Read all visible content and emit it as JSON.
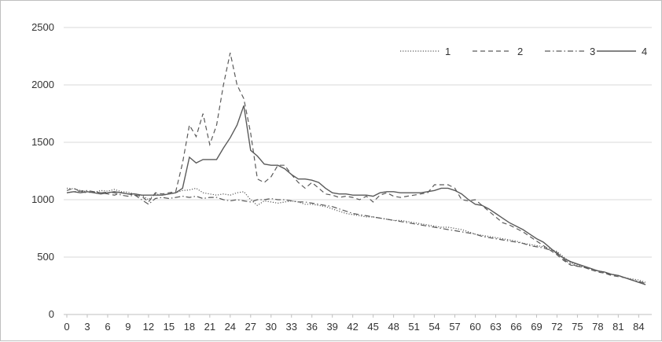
{
  "chart_data": {
    "type": "line",
    "title": "",
    "xlabel": "",
    "ylabel": "",
    "x_tick_step": 3,
    "xlim": [
      0,
      85
    ],
    "ylim": [
      0,
      2500
    ],
    "y_ticks": [
      0,
      500,
      1000,
      1500,
      2000,
      2500
    ],
    "grid": "horizontal",
    "legend": "top-right",
    "colors": {
      "grid": "#d9d9d9",
      "axis": "#bfbfbf",
      "series": "#5a5a5a"
    },
    "x": [
      0,
      1,
      2,
      3,
      4,
      5,
      6,
      7,
      8,
      9,
      10,
      11,
      12,
      13,
      14,
      15,
      16,
      17,
      18,
      19,
      20,
      21,
      22,
      23,
      24,
      25,
      26,
      27,
      28,
      29,
      30,
      31,
      32,
      33,
      34,
      35,
      36,
      37,
      38,
      39,
      40,
      41,
      42,
      43,
      44,
      45,
      46,
      47,
      48,
      49,
      50,
      51,
      52,
      53,
      54,
      55,
      56,
      57,
      58,
      59,
      60,
      61,
      62,
      63,
      64,
      65,
      66,
      67,
      68,
      69,
      70,
      71,
      72,
      73,
      74,
      75,
      76,
      77,
      78,
      79,
      80,
      81,
      82,
      83,
      84,
      85
    ],
    "series": [
      {
        "name": "1",
        "dash": "dotted",
        "values": [
          1100,
          1095,
          1080,
          1070,
          1065,
          1080,
          1075,
          1090,
          1070,
          1065,
          1050,
          1040,
          1000,
          1050,
          1040,
          1050,
          1060,
          1080,
          1085,
          1100,
          1060,
          1050,
          1040,
          1050,
          1040,
          1060,
          1070,
          1000,
          950,
          990,
          980,
          970,
          980,
          990,
          980,
          960,
          960,
          950,
          940,
          920,
          900,
          880,
          870,
          860,
          850,
          850,
          840,
          830,
          820,
          820,
          810,
          800,
          790,
          780,
          770,
          760,
          760,
          750,
          740,
          720,
          700,
          690,
          680,
          670,
          660,
          650,
          640,
          620,
          610,
          600,
          590,
          570,
          550,
          500,
          450,
          430,
          410,
          400,
          380,
          370,
          350,
          340,
          320,
          310,
          300,
          280
        ]
      },
      {
        "name": "2",
        "dash": "dashed",
        "values": [
          1080,
          1100,
          1070,
          1060,
          1070,
          1060,
          1050,
          1040,
          1060,
          1050,
          1040,
          1030,
          980,
          1060,
          1050,
          1060,
          1070,
          1320,
          1650,
          1550,
          1750,
          1480,
          1650,
          2000,
          2280,
          2000,
          1880,
          1580,
          1180,
          1150,
          1200,
          1300,
          1300,
          1220,
          1150,
          1100,
          1150,
          1100,
          1050,
          1040,
          1020,
          1030,
          1020,
          1000,
          1030,
          980,
          1040,
          1060,
          1030,
          1020,
          1030,
          1040,
          1050,
          1060,
          1130,
          1130,
          1130,
          1100,
          1000,
          990,
          1000,
          950,
          900,
          850,
          800,
          780,
          750,
          720,
          680,
          640,
          600,
          560,
          520,
          470,
          430,
          420,
          410,
          390,
          370,
          360,
          340,
          330,
          320,
          300,
          280,
          260
        ]
      },
      {
        "name": "3",
        "dash": "dashdot",
        "values": [
          1060,
          1070,
          1075,
          1080,
          1070,
          1060,
          1065,
          1060,
          1040,
          1030,
          1040,
          1000,
          960,
          1010,
          1020,
          1010,
          1020,
          1030,
          1020,
          1030,
          1010,
          1020,
          1020,
          1000,
          990,
          1000,
          990,
          980,
          1000,
          1000,
          1010,
          1000,
          1000,
          990,
          980,
          980,
          970,
          960,
          950,
          940,
          920,
          900,
          880,
          870,
          860,
          850,
          840,
          830,
          820,
          810,
          800,
          790,
          780,
          770,
          760,
          750,
          740,
          730,
          720,
          710,
          700,
          680,
          670,
          660,
          650,
          640,
          630,
          620,
          600,
          590,
          580,
          560,
          540,
          480,
          440,
          420,
          410,
          390,
          380,
          360,
          350,
          340,
          320,
          300,
          290,
          270
        ]
      },
      {
        "name": "4",
        "dash": "solid",
        "values": [
          1060,
          1070,
          1060,
          1070,
          1060,
          1050,
          1060,
          1070,
          1060,
          1050,
          1050,
          1040,
          1040,
          1040,
          1040,
          1050,
          1060,
          1100,
          1370,
          1320,
          1350,
          1350,
          1350,
          1450,
          1540,
          1650,
          1820,
          1430,
          1380,
          1310,
          1300,
          1300,
          1270,
          1220,
          1180,
          1180,
          1170,
          1150,
          1100,
          1060,
          1050,
          1050,
          1040,
          1040,
          1040,
          1030,
          1060,
          1070,
          1070,
          1060,
          1060,
          1060,
          1060,
          1070,
          1080,
          1100,
          1100,
          1080,
          1050,
          1000,
          960,
          950,
          920,
          880,
          840,
          800,
          770,
          740,
          700,
          660,
          630,
          580,
          530,
          490,
          460,
          440,
          420,
          400,
          380,
          370,
          350,
          340,
          320,
          300,
          280,
          260
        ]
      }
    ]
  }
}
